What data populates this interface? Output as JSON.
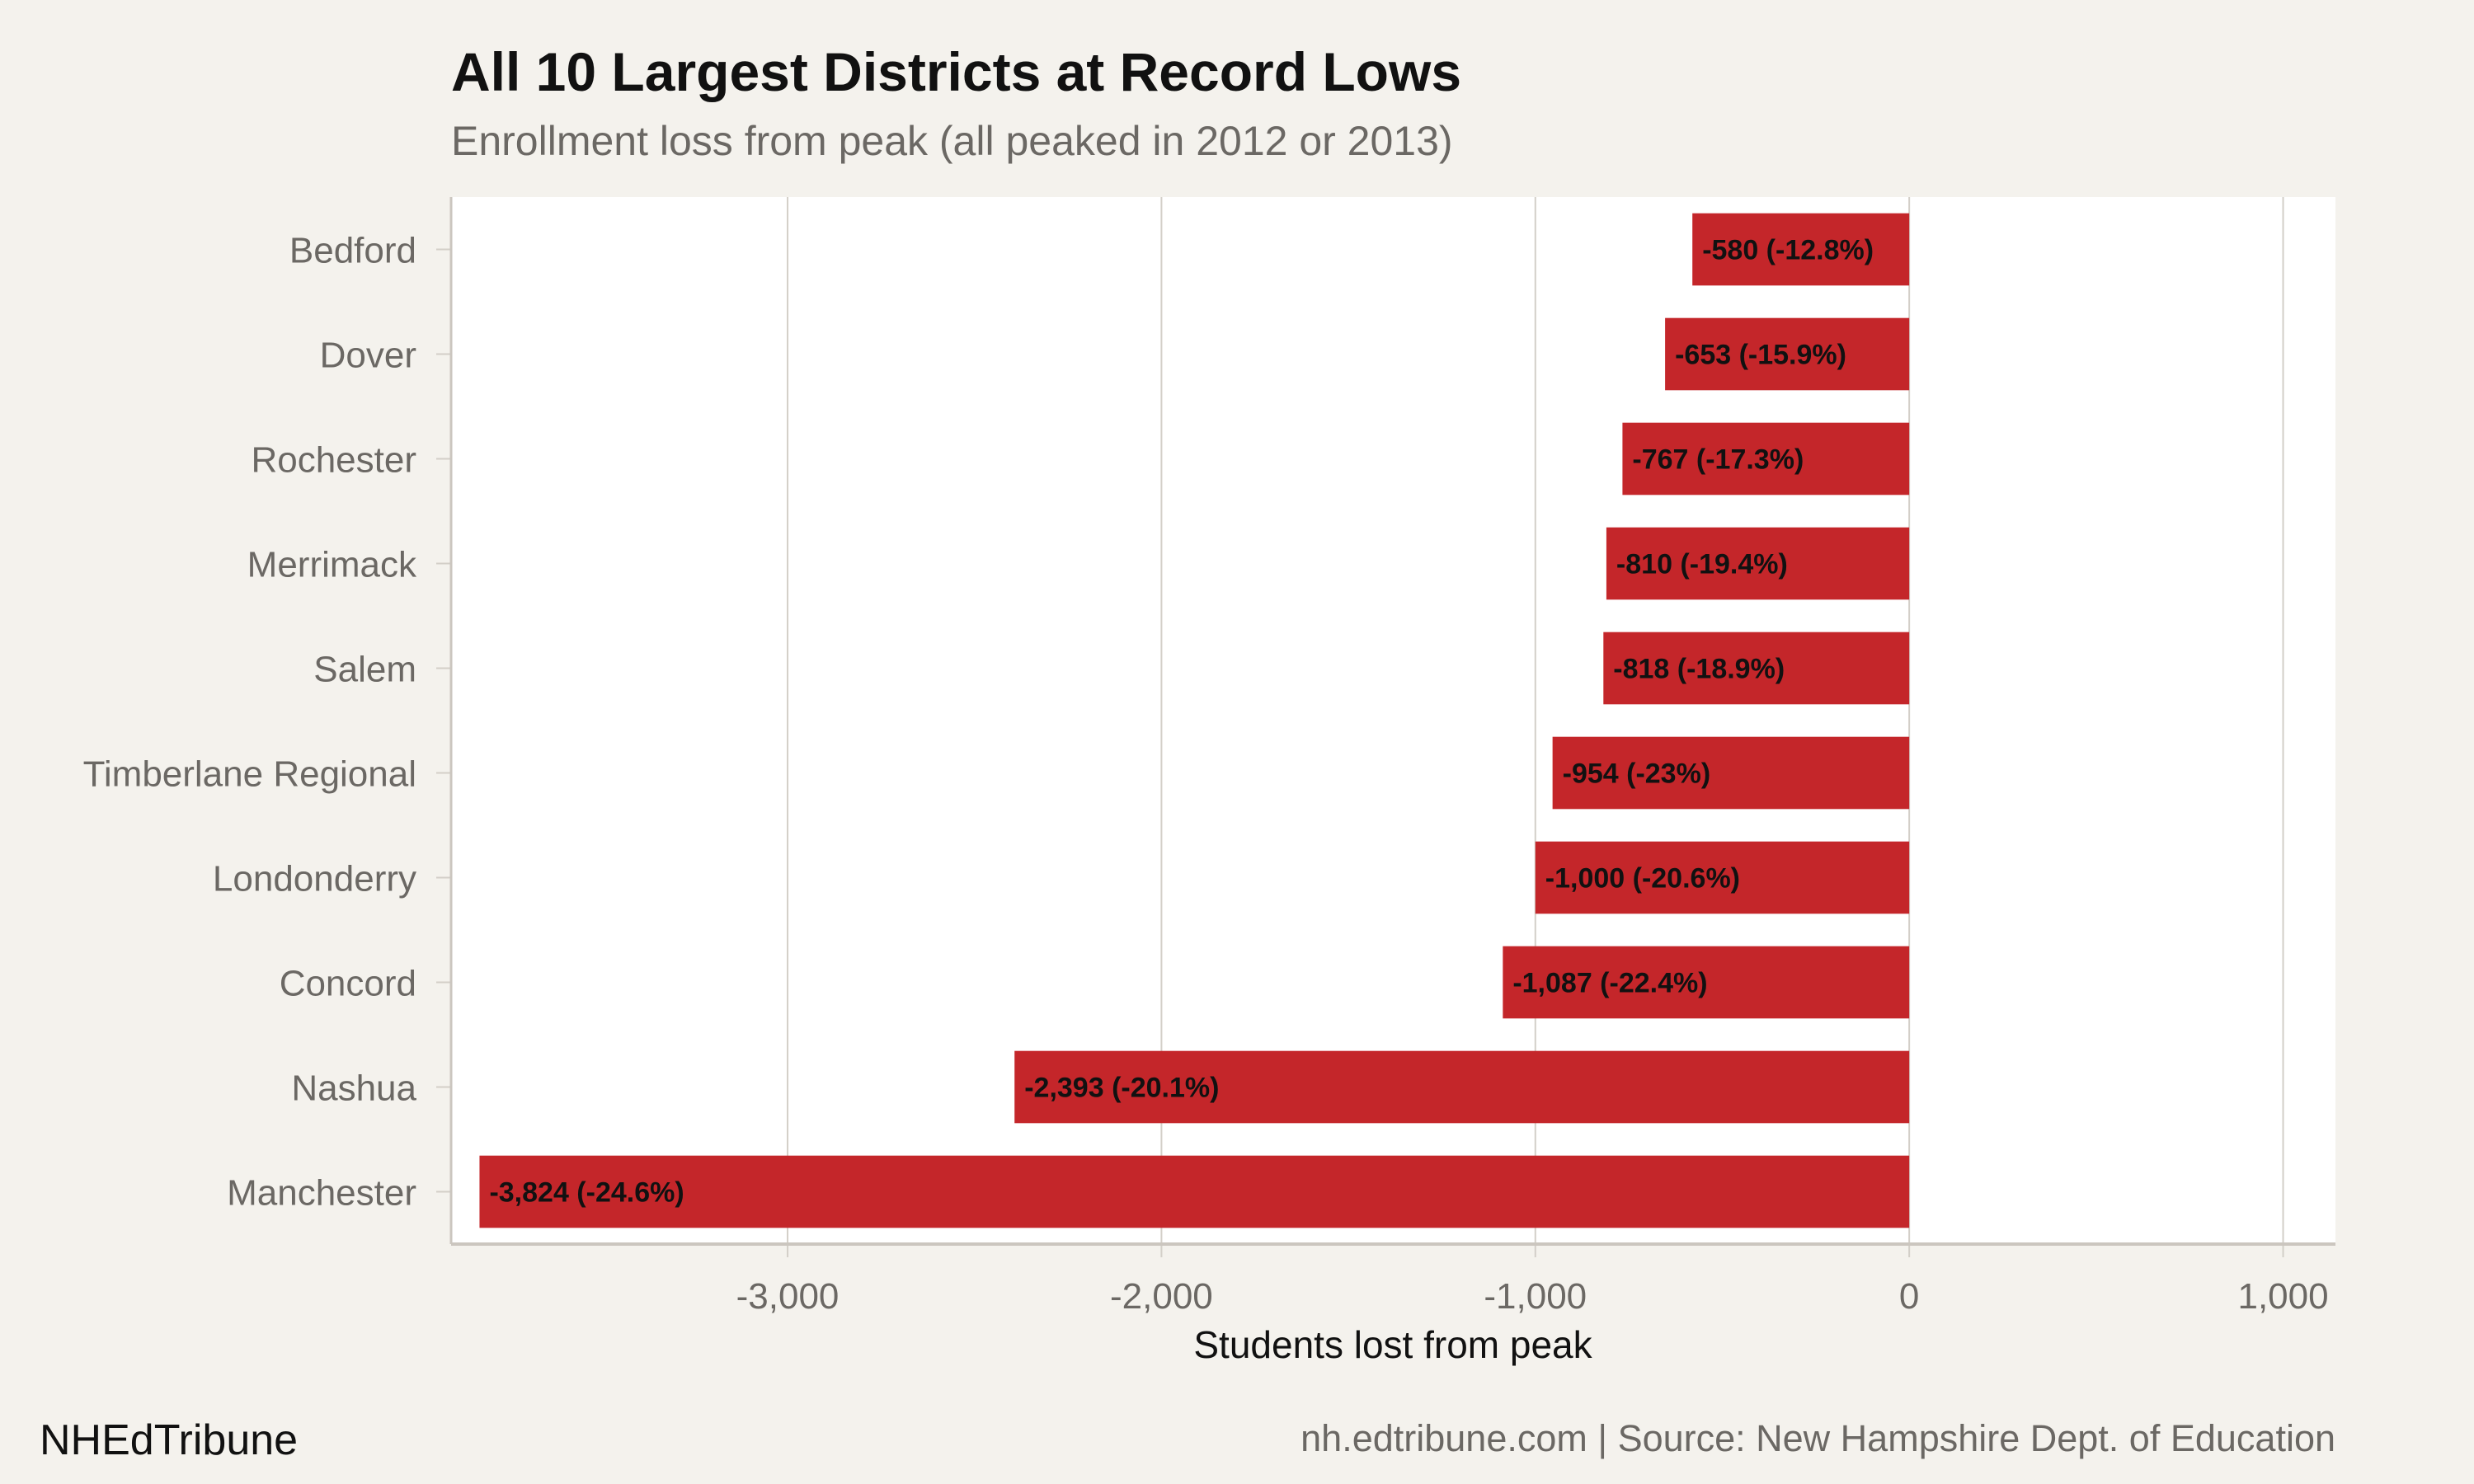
{
  "chart_data": {
    "type": "bar",
    "orientation": "horizontal",
    "title": "All 10 Largest Districts at Record Lows",
    "subtitle": "Enrollment loss from peak (all peaked in 2012 or 2013)",
    "xlabel": "Students lost from peak",
    "ylabel": "",
    "xlim": [
      -3900,
      1140
    ],
    "xticks": [
      -3000,
      -2000,
      -1000,
      0,
      1000
    ],
    "xtick_labels": [
      "-3,000",
      "-2,000",
      "-1,000",
      "0",
      "1,000"
    ],
    "grid": "vertical",
    "categories": [
      "Bedford",
      "Dover",
      "Rochester",
      "Merrimack",
      "Salem",
      "Timberlane Regional",
      "Londonderry",
      "Concord",
      "Nashua",
      "Manchester"
    ],
    "values": [
      -580,
      -653,
      -767,
      -810,
      -818,
      -954,
      -1000,
      -1087,
      -2393,
      -3824
    ],
    "data_labels": [
      "-580 (-12.8%)",
      "-653 (-15.9%)",
      "-767 (-17.3%)",
      "-810 (-19.4%)",
      "-818 (-18.9%)",
      "-954 (-23%)",
      "-1,000 (-20.6%)",
      "-1,087 (-22.4%)",
      "-2,393 (-20.1%)",
      "-3,824 (-24.6%)"
    ],
    "colors": {
      "bar": "#c4262a",
      "background": "#f4f2ed",
      "panel": "#ffffff",
      "grid": "#d3cfc8"
    }
  },
  "footer": {
    "brand": "NHEdTribune",
    "source": "nh.edtribune.com | Source: New Hampshire Dept. of Education"
  }
}
